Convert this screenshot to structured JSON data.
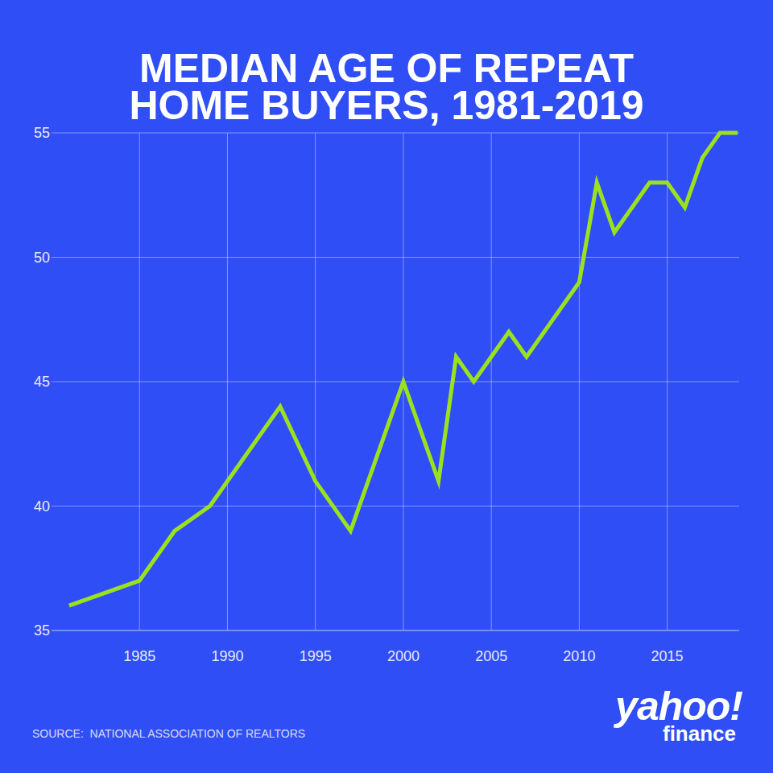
{
  "chart_data": {
    "type": "line",
    "title": "MEDIAN AGE OF REPEAT HOME BUYERS, 1981-2019",
    "x": [
      1981,
      1985,
      1987,
      1989,
      1993,
      1995,
      1997,
      2000,
      2002,
      2003,
      2004,
      2006,
      2007,
      2010,
      2011,
      2012,
      2014,
      2015,
      2016,
      2017,
      2018,
      2019
    ],
    "values": [
      36,
      37,
      39,
      40,
      44,
      41,
      39,
      45,
      41,
      46,
      45,
      47,
      46,
      49,
      53,
      51,
      53,
      53,
      52,
      54,
      55,
      55
    ],
    "color": "#9be21d",
    "xlim": [
      1980,
      2019
    ],
    "ylim": [
      35,
      55
    ],
    "xticks": [
      1985,
      1990,
      1995,
      2000,
      2005,
      2010,
      2015
    ],
    "yticks": [
      35,
      40,
      45,
      50,
      55
    ],
    "grid": true,
    "source": "SOURCE:  NATIONAL ASSOCIATION OF REALTORS",
    "brand": "yahoo!",
    "brand_sub": "finance"
  }
}
